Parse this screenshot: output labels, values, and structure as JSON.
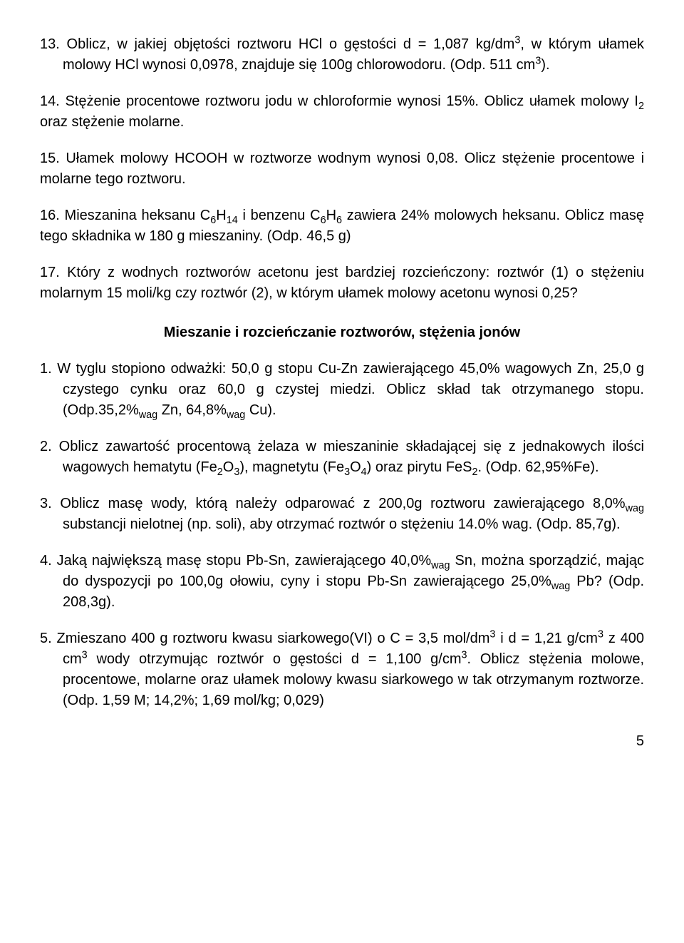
{
  "problems_a": [
    {
      "num": "13.",
      "html": "Oblicz, w jakiej objętości roztworu HCl o gęstości d = 1,087 kg/dm<span class='sup'>3</span>, w którym ułamek molowy HCl wynosi 0,0978, znajduje się 100g chlorowodoru. (Odp. 511 cm<span class='sup'>3</span>)."
    },
    {
      "num": "14.",
      "html": "Stężenie procentowe roztworu jodu w chloroformie wynosi 15%. Oblicz ułamek molowy I<span class='sub'>2</span> oraz stężenie molarne."
    },
    {
      "num": "15.",
      "html": "Ułamek molowy HCOOH w roztworze wodnym wynosi 0,08. Olicz stężenie procentowe i molarne tego roztworu."
    },
    {
      "num": "16.",
      "html": "Mieszanina heksanu C<span class='sub'>6</span>H<span class='sub'>14</span> i benzenu C<span class='sub'>6</span>H<span class='sub'>6</span> zawiera 24% molowych heksanu. Oblicz masę tego składnika w 180 g mieszaniny. (Odp. 46,5 g)"
    },
    {
      "num": "17.",
      "html": "Który z wodnych roztworów acetonu jest bardziej rozcieńczony: roztwór (1) o stężeniu molarnym 15 moli/kg czy roztwór (2), w którym ułamek molowy acetonu wynosi 0,25?"
    }
  ],
  "section_heading": "Mieszanie i rozcieńczanie roztworów, stężenia jonów",
  "problems_b": [
    {
      "num": "1.",
      "html": "W tyglu stopiono odważki: 50,0 g stopu Cu-Zn zawierającego 45,0% wagowych Zn, 25,0 g czystego cynku oraz 60,0 g czystej miedzi. Oblicz skład tak otrzymanego stopu. (Odp.35,2%<span class='sub'>wag</span> Zn, 64,8%<span class='sub'>wag</span> Cu)."
    },
    {
      "num": "2.",
      "html": "Oblicz zawartość procentową żelaza w mieszaninie składającej się z jednakowych ilości  wagowych hematytu (Fe<span class='sub'>2</span>O<span class='sub'>3</span>), magnetytu (Fe<span class='sub'>3</span>O<span class='sub'>4</span>) oraz pirytu FeS<span class='sub'>2</span>. (Odp. 62,95%Fe)."
    },
    {
      "num": "3.",
      "html": "Oblicz masę wody, którą należy odparować z 200,0g roztworu zawierającego 8,0%<span class='sub'>wag</span> substancji nielotnej (np. soli), aby otrzymać roztwór o stężeniu 14.0% wag. (Odp. 85,7g)."
    },
    {
      "num": "4.",
      "html": "Jaką największą masę stopu Pb-Sn, zawierającego 40,0%<span class='sub'>wag</span> Sn, można sporządzić, mając do dyspozycji po 100,0g ołowiu, cyny i stopu Pb-Sn zawierającego 25,0%<span class='sub'>wag</span> Pb?  (Odp. 208,3g)."
    },
    {
      "num": "5.",
      "html": "Zmieszano 400 g roztworu kwasu siarkowego(VI) o C = 3,5 mol/dm<span class='sup'>3</span> i d = 1,21 g/cm<span class='sup'>3</span> z 400 cm<span class='sup'>3</span> wody otrzymując roztwór o gęstości d = 1,100 g/cm<span class='sup'>3</span>. Oblicz stężenia molowe, procentowe, molarne oraz ułamek molowy kwasu siarkowego w tak otrzymanym roztworze.     (Odp. 1,59 M; 14,2%; 1,69 mol/kg; 0,029)"
    }
  ],
  "page_number": "5"
}
